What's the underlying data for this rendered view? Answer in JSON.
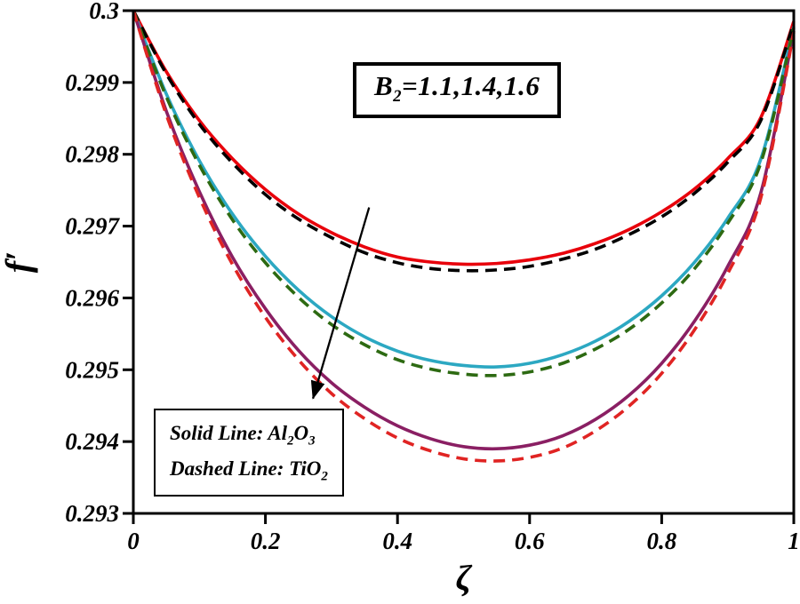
{
  "chart_data": {
    "type": "line",
    "title": "",
    "xlabel": "ζ",
    "ylabel": "f′",
    "xlim": [
      0,
      1
    ],
    "ylim": [
      0.293,
      0.3
    ],
    "grid": false,
    "frame": true,
    "xticks": [
      0,
      0.2,
      0.4,
      0.6,
      0.8,
      1
    ],
    "xtick_labels": [
      "0",
      "0.2",
      "0.4",
      "0.6",
      "0.8",
      "1"
    ],
    "yticks": [
      0.293,
      0.294,
      0.295,
      0.296,
      0.297,
      0.298,
      0.299,
      0.3
    ],
    "ytick_labels": [
      "0.293",
      "0.294",
      "0.295",
      "0.296",
      "0.297",
      "0.298",
      "0.299",
      "0.3"
    ],
    "x": [
      0,
      0.05,
      0.1,
      0.15,
      0.2,
      0.25,
      0.3,
      0.35,
      0.4,
      0.45,
      0.5,
      0.55,
      0.6,
      0.65,
      0.7,
      0.75,
      0.8,
      0.85,
      0.9,
      0.95,
      1
    ],
    "series": [
      {
        "name": "B2=1.1 Al2O3 (solid)",
        "color": "#e8000b",
        "style": "solid",
        "values": [
          0.3,
          0.29915,
          0.29847,
          0.29794,
          0.29751,
          0.29717,
          0.29691,
          0.29671,
          0.29657,
          0.2965,
          0.29647,
          0.29648,
          0.29653,
          0.29662,
          0.29676,
          0.29695,
          0.2972,
          0.29752,
          0.29794,
          0.29851,
          0.29985
        ]
      },
      {
        "name": "B2=1.4 Al2O3 (solid)",
        "color": "#2ca8c2",
        "style": "solid",
        "values": [
          0.3,
          0.29884,
          0.29791,
          0.29717,
          0.29658,
          0.29611,
          0.29574,
          0.29546,
          0.29526,
          0.29513,
          0.29506,
          0.29504,
          0.29509,
          0.29521,
          0.2954,
          0.29567,
          0.29603,
          0.2965,
          0.29711,
          0.29793,
          0.29978
        ]
      },
      {
        "name": "B2=1.6 Al2O3 (solid)",
        "color": "#8a1f63",
        "style": "solid",
        "values": [
          0.3,
          0.2986,
          0.29748,
          0.29657,
          0.29585,
          0.29527,
          0.29482,
          0.29448,
          0.29422,
          0.29404,
          0.29393,
          0.2939,
          0.29395,
          0.29408,
          0.29431,
          0.29464,
          0.29509,
          0.29568,
          0.29644,
          0.29746,
          0.29972
        ]
      },
      {
        "name": "B2=1.1 TiO2 (dashed)",
        "color": "#000000",
        "style": "dashed",
        "values": [
          0.3,
          0.29912,
          0.29842,
          0.29788,
          0.29744,
          0.2971,
          0.29684,
          0.29663,
          0.29649,
          0.29641,
          0.29638,
          0.29639,
          0.29644,
          0.29654,
          0.29668,
          0.29688,
          0.29713,
          0.29746,
          0.29789,
          0.29847,
          0.29983
        ]
      },
      {
        "name": "B2=1.4 TiO2 (dashed)",
        "color": "#2d6a12",
        "style": "dashed",
        "values": [
          0.3,
          0.2988,
          0.29785,
          0.29709,
          0.29649,
          0.29601,
          0.29563,
          0.29535,
          0.29514,
          0.29501,
          0.29494,
          0.29492,
          0.29497,
          0.29509,
          0.29529,
          0.29556,
          0.29593,
          0.29641,
          0.29704,
          0.29788,
          0.29976
        ]
      },
      {
        "name": "B2=1.6 TiO2 (dashed)",
        "color": "#e02423",
        "style": "dashed",
        "values": [
          0.3,
          0.29855,
          0.2974,
          0.29647,
          0.29573,
          0.29514,
          0.29467,
          0.29432,
          0.29405,
          0.29387,
          0.29376,
          0.29373,
          0.29378,
          0.29391,
          0.29415,
          0.29449,
          0.29495,
          0.29556,
          0.29634,
          0.29739,
          0.2997
        ]
      }
    ],
    "annotation": {
      "param": "B",
      "param_sub": "2",
      "values_text": "=1.1,1.4,1.6"
    },
    "legend": {
      "solid_label": "Solid Line: ",
      "solid_parts": [
        "Al",
        "2",
        "O",
        "3"
      ],
      "dashed_label": "Dashed Line: ",
      "dashed_parts": [
        "TiO",
        "2"
      ]
    },
    "arrow": {
      "tail": {
        "x": 0.357,
        "y": 0.29726
      },
      "head": {
        "x": 0.272,
        "y": 0.2946
      }
    }
  },
  "colors": {
    "axis": "#000000",
    "background": "#ffffff",
    "arrow": "#000000"
  }
}
